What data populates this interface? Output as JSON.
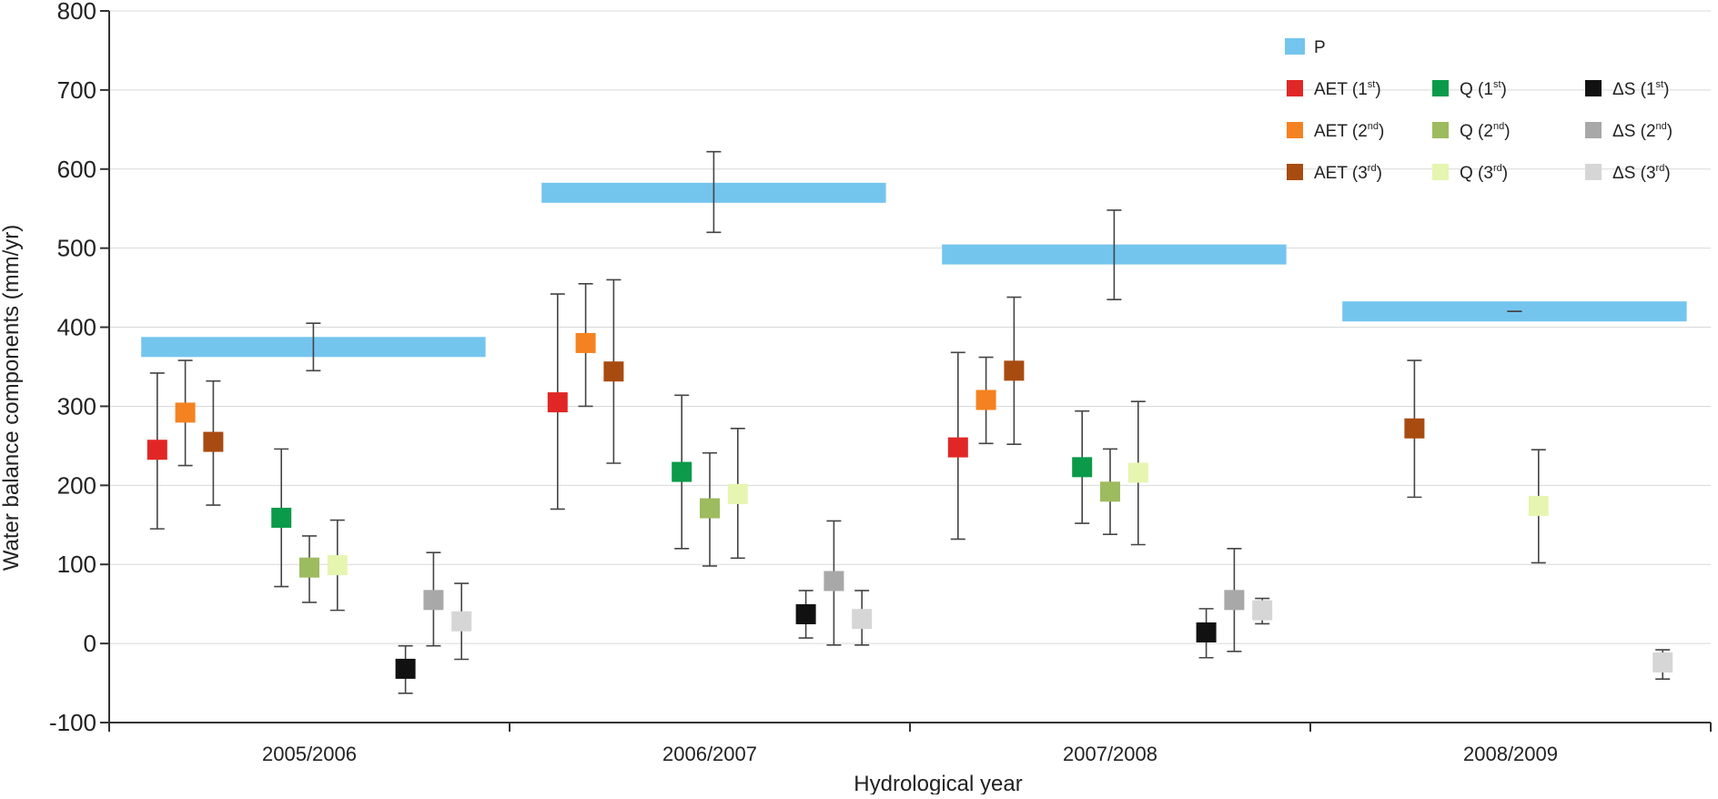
{
  "chart_data": {
    "type": "scatter",
    "title": "",
    "xlabel": "Hydrological year",
    "ylabel": "Water balance components (mm/yr)",
    "ylim": [
      -100,
      800
    ],
    "yticks": [
      -100,
      0,
      100,
      200,
      300,
      400,
      500,
      600,
      700,
      800
    ],
    "grid": true,
    "legend_position": "top-right",
    "categories": [
      "2005/2006",
      "2006/2007",
      "2007/2008",
      "2008/2009"
    ],
    "colors": {
      "P": "#74c5ee",
      "AET1": "#e02726",
      "AET2": "#f58220",
      "AET3": "#a84b10",
      "Q1": "#0a9a4a",
      "Q2": "#9dbb5f",
      "Q3": "#e6f5b0",
      "dS1": "#111111",
      "dS2": "#a8a8a8",
      "dS3": "#d6d6d6"
    },
    "precipitation": {
      "name": "P",
      "values": [
        375,
        570,
        492,
        420
      ],
      "err_low": [
        345,
        520,
        435,
        420
      ],
      "err_high": [
        405,
        622,
        548,
        420
      ]
    },
    "series": [
      {
        "name": "AET (1st)",
        "key": "AET1",
        "sup": "st",
        "values": [
          245,
          305,
          248,
          null
        ],
        "low": [
          145,
          170,
          132,
          null
        ],
        "high": [
          342,
          442,
          368,
          null
        ]
      },
      {
        "name": "AET (2nd)",
        "key": "AET2",
        "sup": "nd",
        "values": [
          292,
          380,
          308,
          null
        ],
        "low": [
          225,
          300,
          253,
          null
        ],
        "high": [
          358,
          455,
          362,
          null
        ]
      },
      {
        "name": "AET (3rd)",
        "key": "AET3",
        "sup": "rd",
        "values": [
          255,
          344,
          345,
          272
        ],
        "low": [
          175,
          228,
          252,
          185
        ],
        "high": [
          332,
          460,
          438,
          358
        ]
      },
      {
        "name": "Q (1st)",
        "key": "Q1",
        "sup": "st",
        "values": [
          159,
          217,
          223,
          null
        ],
        "low": [
          72,
          120,
          152,
          null
        ],
        "high": [
          246,
          314,
          294,
          null
        ]
      },
      {
        "name": "Q (2nd)",
        "key": "Q2",
        "sup": "nd",
        "values": [
          96,
          171,
          192,
          null
        ],
        "low": [
          52,
          98,
          138,
          null
        ],
        "high": [
          136,
          241,
          246,
          null
        ]
      },
      {
        "name": "Q (3rd)",
        "key": "Q3",
        "sup": "rd",
        "values": [
          99,
          189,
          216,
          174
        ],
        "low": [
          42,
          108,
          125,
          102
        ],
        "high": [
          156,
          272,
          306,
          245
        ]
      },
      {
        "name": "ΔS (1st)",
        "key": "dS1",
        "sup": "st",
        "values": [
          -32,
          37,
          14,
          null
        ],
        "low": [
          -63,
          7,
          -18,
          null
        ],
        "high": [
          -3,
          67,
          44,
          null
        ]
      },
      {
        "name": "ΔS (2nd)",
        "key": "dS2",
        "sup": "nd",
        "values": [
          55,
          79,
          55,
          null
        ],
        "low": [
          -3,
          -2,
          -10,
          null
        ],
        "high": [
          115,
          155,
          120,
          null
        ]
      },
      {
        "name": "ΔS (3rd)",
        "key": "dS3",
        "sup": "rd",
        "values": [
          28,
          31,
          42,
          -24
        ],
        "low": [
          -20,
          -2,
          25,
          -45
        ],
        "high": [
          76,
          67,
          57,
          -8
        ]
      }
    ],
    "legend": [
      {
        "key": "P",
        "label": "P",
        "sup": ""
      },
      {
        "key": "AET1",
        "label": "AET (1",
        "sup": "st",
        "close": ")"
      },
      {
        "key": "AET2",
        "label": "AET (2",
        "sup": "nd",
        "close": ")"
      },
      {
        "key": "AET3",
        "label": "AET (3",
        "sup": "rd",
        "close": ")"
      },
      {
        "key": "Q1",
        "label": "Q (1",
        "sup": "st",
        "close": ")"
      },
      {
        "key": "Q2",
        "label": "Q (2",
        "sup": "nd",
        "close": ")"
      },
      {
        "key": "Q3",
        "label": "Q (3",
        "sup": "rd",
        "close": ")"
      },
      {
        "key": "dS1",
        "label": "ΔS (1",
        "sup": "st",
        "close": ")"
      },
      {
        "key": "dS2",
        "label": "ΔS (2",
        "sup": "nd",
        "close": ")"
      },
      {
        "key": "dS3",
        "label": "ΔS (3",
        "sup": "rd",
        "close": ")"
      }
    ]
  }
}
